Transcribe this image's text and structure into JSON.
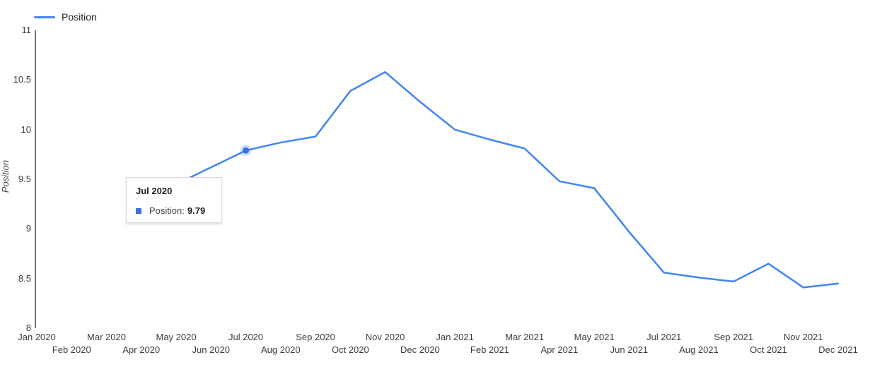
{
  "page": {
    "background": "#ffffff"
  },
  "legend": {
    "label": "Position",
    "color": "#4285f4"
  },
  "tooltip": {
    "title": "Jul 2020",
    "label": "Position:",
    "value": "9.79",
    "marker_color": "#3e6fe0"
  },
  "chart_data": {
    "type": "line",
    "title": "",
    "xlabel": "",
    "ylabel": "Position",
    "ylim": [
      8,
      11
    ],
    "y_ticks": [
      8,
      8.5,
      9,
      9.5,
      10,
      10.5,
      11
    ],
    "grid": false,
    "legend_position": "top-left",
    "line_color": "#4285f4",
    "x": [
      "Jan 2020",
      "Feb 2020",
      "Mar 2020",
      "Apr 2020",
      "May 2020",
      "Jun 2020",
      "Jul 2020",
      "Aug 2020",
      "Sep 2020",
      "Oct 2020",
      "Nov 2020",
      "Dec 2020",
      "Jan 2021",
      "Feb 2021",
      "Mar 2021",
      "Apr 2021",
      "May 2021",
      "Jun 2021",
      "Jul 2021",
      "Aug 2021",
      "Sep 2021",
      "Oct 2021",
      "Nov 2021",
      "Dec 2021"
    ],
    "series": [
      {
        "name": "Position",
        "color": "#4285f4",
        "values": [
          null,
          null,
          null,
          null,
          9.45,
          9.62,
          9.79,
          9.87,
          9.93,
          10.39,
          10.58,
          10.28,
          10.0,
          9.9,
          9.81,
          9.48,
          9.41,
          8.97,
          8.56,
          8.51,
          8.47,
          8.65,
          8.41,
          8.45
        ]
      }
    ],
    "highlight": {
      "x": "Jul 2020",
      "index": 6,
      "value": 9.79
    }
  }
}
